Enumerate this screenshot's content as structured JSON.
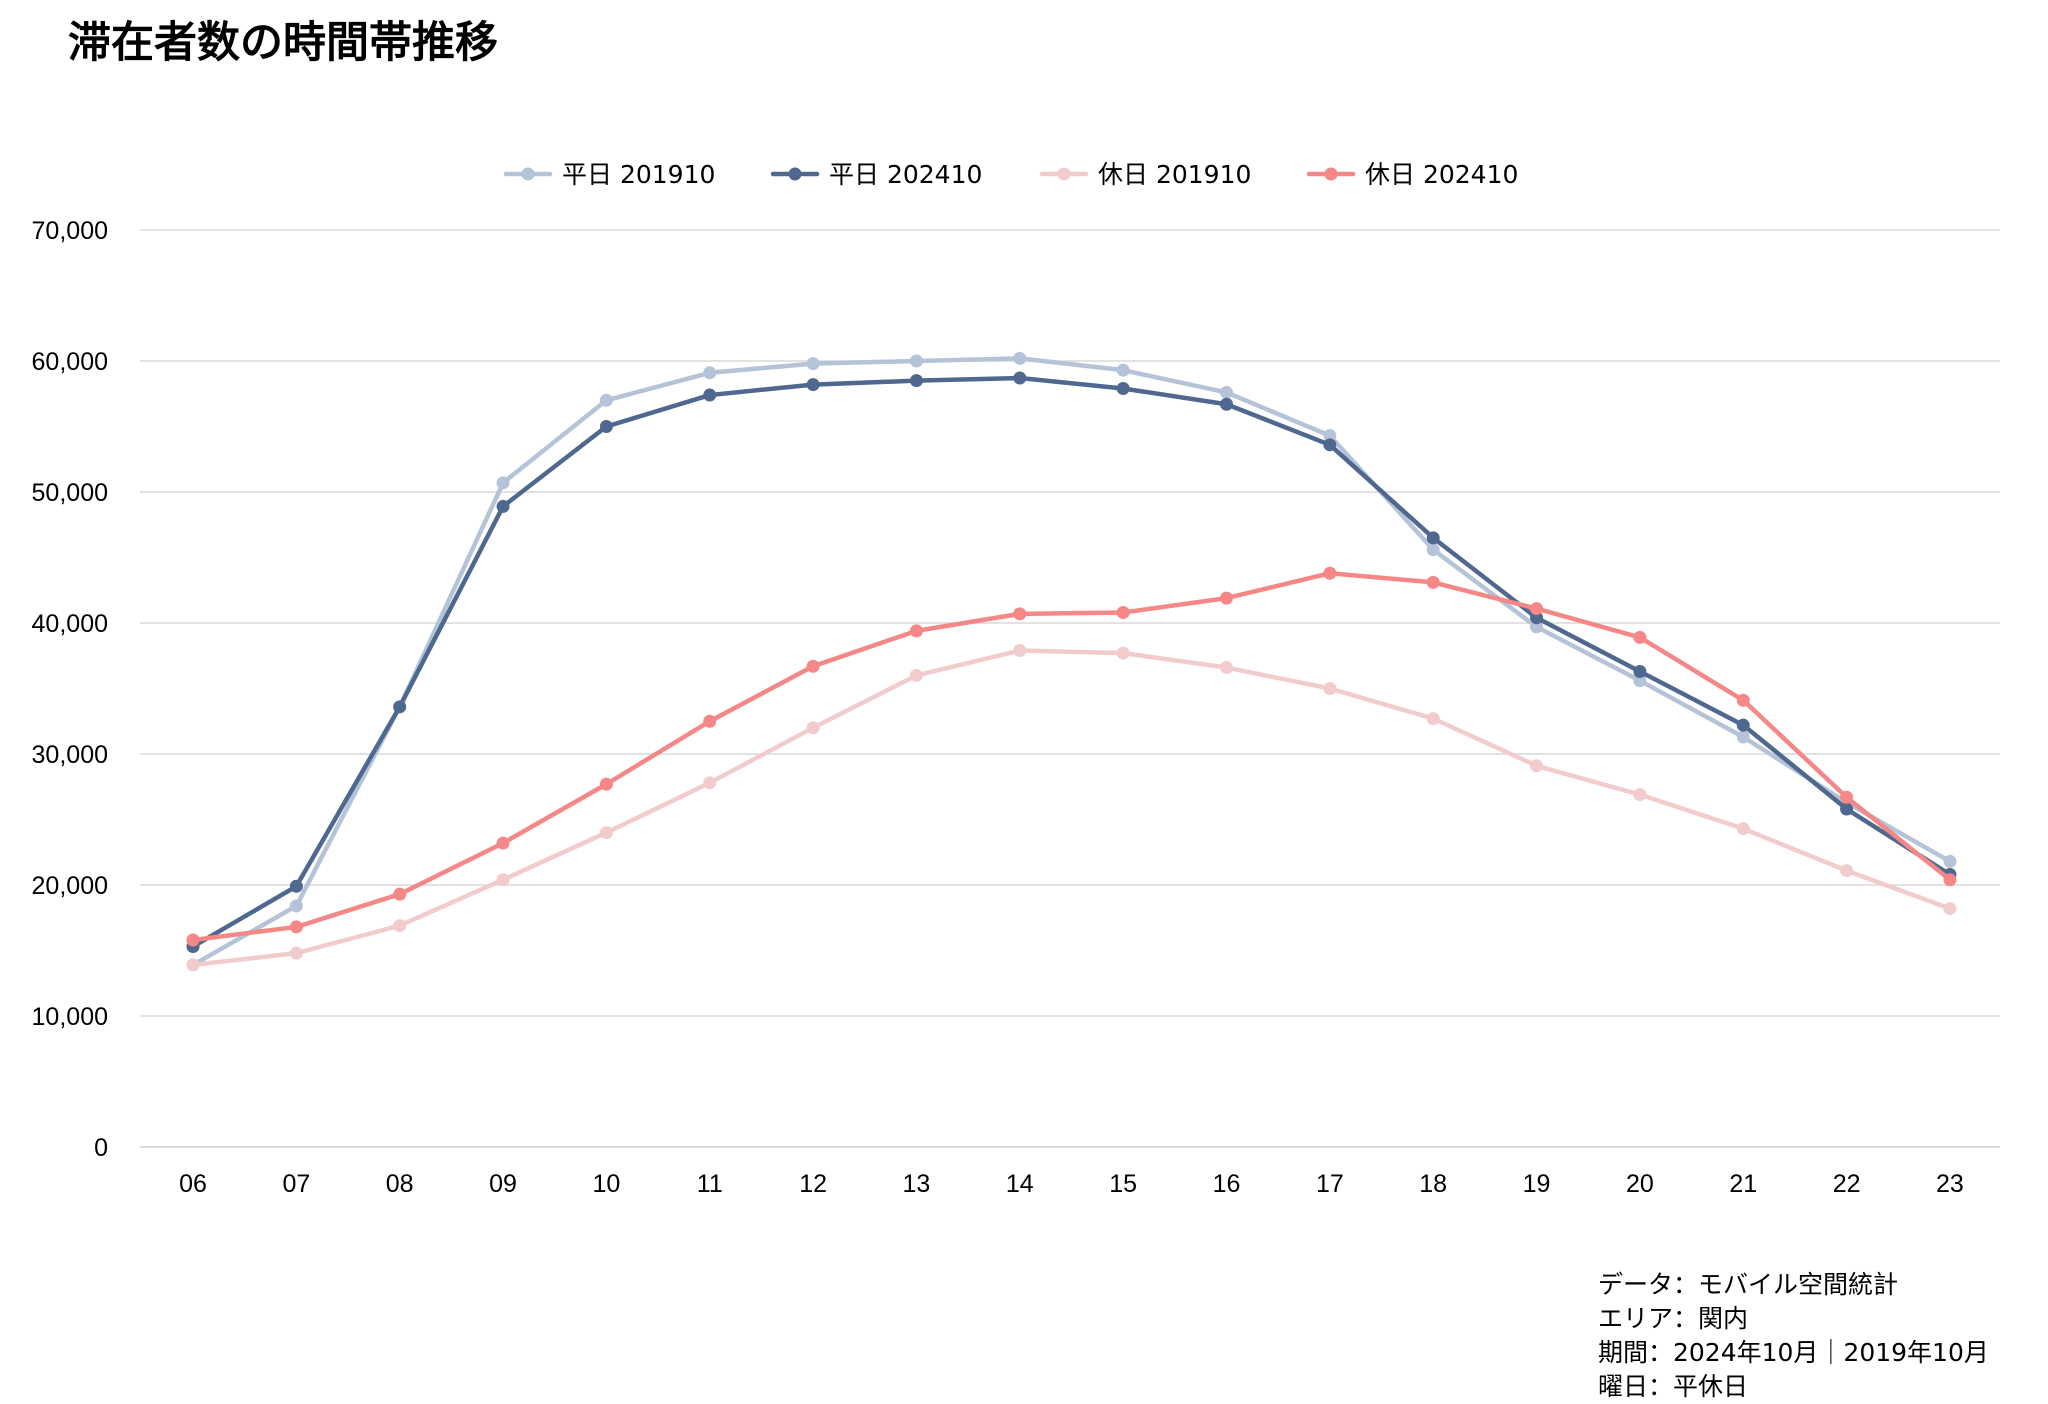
{
  "title": "滞在者数の時間帯推移",
  "footnote": [
    "データ：モバイル空間統計",
    "エリア：関内",
    "期間：2024年10月｜2019年10月",
    "曜日：平休日"
  ],
  "chart_data": {
    "type": "line",
    "title": "滞在者数の時間帯推移",
    "xlabel": "",
    "ylabel": "",
    "categories": [
      "06",
      "07",
      "08",
      "09",
      "10",
      "11",
      "12",
      "13",
      "14",
      "15",
      "16",
      "17",
      "18",
      "19",
      "20",
      "21",
      "22",
      "23"
    ],
    "ylim": [
      0,
      70000
    ],
    "yticks": [
      0,
      10000,
      20000,
      30000,
      40000,
      50000,
      60000,
      70000
    ],
    "ytick_labels": [
      "0",
      "10,000",
      "20,000",
      "30,000",
      "40,000",
      "50,000",
      "60,000",
      "70,000"
    ],
    "grid": "horizontal",
    "legend_position": "top-center",
    "series": [
      {
        "name": "平日 201910",
        "color": "#b4c3d7",
        "values": [
          13900,
          18400,
          33600,
          50700,
          57000,
          59100,
          59800,
          60000,
          60200,
          59300,
          57600,
          54300,
          45600,
          39700,
          35600,
          31300,
          26300,
          21800
        ]
      },
      {
        "name": "平日 202410",
        "color": "#4e6890",
        "values": [
          15300,
          19900,
          33600,
          48900,
          55000,
          57400,
          58200,
          58500,
          58700,
          57900,
          56700,
          53600,
          46500,
          40400,
          36300,
          32200,
          25800,
          20800
        ]
      },
      {
        "name": "休日 201910",
        "color": "#f2cccc",
        "values": [
          13900,
          14800,
          16900,
          20400,
          24000,
          27800,
          32000,
          36000,
          37900,
          37700,
          36600,
          35000,
          32700,
          29100,
          26900,
          24300,
          21100,
          18200
        ]
      },
      {
        "name": "休日 202410",
        "color": "#f58787",
        "values": [
          15800,
          16800,
          19300,
          23200,
          27700,
          32500,
          36700,
          39400,
          40700,
          40800,
          41900,
          43800,
          43100,
          41100,
          38900,
          34100,
          26700,
          20400
        ]
      }
    ]
  }
}
